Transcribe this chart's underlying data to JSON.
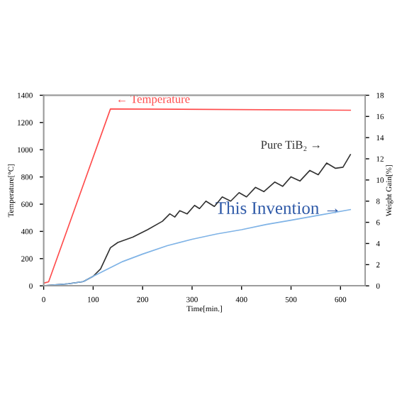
{
  "chart_data": {
    "type": "line",
    "xlabel": "Time[min.]",
    "ylabel": "Temperature[°C]",
    "y2label": "Weight Gain[%]",
    "xlim": [
      0,
      650
    ],
    "xticks": [
      0,
      100,
      200,
      300,
      400,
      500,
      600
    ],
    "ylim": [
      0,
      1400
    ],
    "yticks": [
      0,
      200,
      400,
      600,
      800,
      1000,
      1200,
      1400
    ],
    "y2lim": [
      0,
      18
    ],
    "y2ticks": [
      0,
      2,
      4,
      6,
      8,
      10,
      12,
      14,
      16,
      18
    ],
    "grid": false,
    "legend": false,
    "marker": "none",
    "line_style": "solid",
    "series": [
      {
        "color": "#ff4d4d",
        "x": [
          0,
          10,
          135,
          620
        ],
        "values": [
          20,
          30,
          1300,
          1290
        ]
      },
      {
        "color": "#333333",
        "axis": "y2",
        "x": [
          0,
          50,
          80,
          100,
          115,
          125,
          135,
          150,
          180,
          210,
          240,
          255,
          265,
          275,
          290,
          305,
          315,
          328,
          345,
          361,
          378,
          395,
          410,
          428,
          445,
          467,
          483,
          500,
          518,
          538,
          555,
          572,
          590,
          605,
          620
        ],
        "values": [
          0,
          0.2,
          0.4,
          0.9,
          1.6,
          2.6,
          3.6,
          4.1,
          4.6,
          5.3,
          6.1,
          6.8,
          6.5,
          7.1,
          6.8,
          7.6,
          7.3,
          8.0,
          7.5,
          8.4,
          8.0,
          8.8,
          8.4,
          9.3,
          8.9,
          9.8,
          9.4,
          10.3,
          9.9,
          10.9,
          10.5,
          11.6,
          11.1,
          11.2,
          12.4
        ]
      },
      {
        "color": "#7fb3e6",
        "axis": "y2",
        "x": [
          0,
          50,
          80,
          100,
          130,
          160,
          200,
          250,
          300,
          350,
          400,
          450,
          500,
          560,
          620
        ],
        "values": [
          0,
          0.2,
          0.4,
          0.9,
          1.6,
          2.3,
          3.0,
          3.8,
          4.4,
          4.9,
          5.3,
          5.8,
          6.2,
          6.7,
          7.2
        ]
      }
    ],
    "annotations": [
      "← Temperature",
      "Pure TiB₂ →",
      "This Invention →"
    ]
  }
}
